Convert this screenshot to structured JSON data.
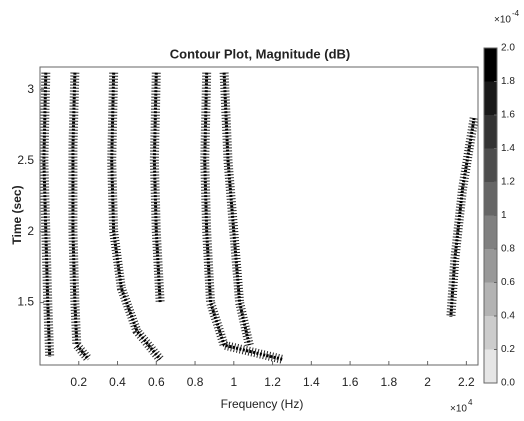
{
  "chart_data": {
    "type": "contour",
    "title": "Contour Plot, Magnitude (dB)",
    "x_label": "Frequency (Hz)",
    "y_label": "Time (sec)",
    "x_multiplier": "×10",
    "x_exponent": "4",
    "colorbar_multiplier": "×10",
    "colorbar_exponent": "-4",
    "xlim": [
      0,
      2.26
    ],
    "ylim": [
      1.06,
      3.16
    ],
    "xticks": [
      0.2,
      0.4,
      0.6,
      0.8,
      1,
      1.2,
      1.4,
      1.6,
      1.8,
      2,
      2.2
    ],
    "yticks": [
      1.5,
      2,
      2.5,
      3
    ],
    "colorbar_lim": [
      0,
      2
    ],
    "colorbar_ticks": [
      {
        "value": 0,
        "label": "0.0"
      },
      0.2,
      0.4,
      0.6,
      0.8,
      1,
      1.2,
      1.4,
      1.6,
      1.8,
      {
        "value": 2,
        "label": "2.0"
      }
    ],
    "color": "#000000",
    "series": [
      {
        "x": [
          0.03,
          0.02,
          0.03,
          0.04,
          0.05
        ],
        "values": [
          3.12,
          2.5,
          2.0,
          1.5,
          1.12
        ]
      },
      {
        "x": [
          0.18,
          0.17,
          0.17,
          0.18,
          0.19,
          0.25
        ],
        "values": [
          3.12,
          2.6,
          2.0,
          1.5,
          1.2,
          1.1
        ]
      },
      {
        "x": [
          0.38,
          0.37,
          0.38,
          0.42,
          0.5,
          0.62
        ],
        "values": [
          3.12,
          2.5,
          2.0,
          1.6,
          1.3,
          1.1
        ]
      },
      {
        "x": [
          0.6,
          0.59,
          0.6,
          0.62
        ],
        "values": [
          3.12,
          2.5,
          2.0,
          1.5
        ]
      },
      {
        "x": [
          0.86,
          0.85,
          0.86,
          0.88,
          0.95,
          1.25
        ],
        "values": [
          3.12,
          2.5,
          2.0,
          1.5,
          1.2,
          1.1
        ]
      },
      {
        "x": [
          0.95,
          0.97,
          1.0,
          1.03,
          1.08
        ],
        "values": [
          3.12,
          2.5,
          2.0,
          1.5,
          1.2
        ]
      },
      {
        "x": [
          2.24,
          2.18,
          2.14,
          2.12
        ],
        "values": [
          2.8,
          2.3,
          1.8,
          1.4
        ]
      }
    ]
  }
}
